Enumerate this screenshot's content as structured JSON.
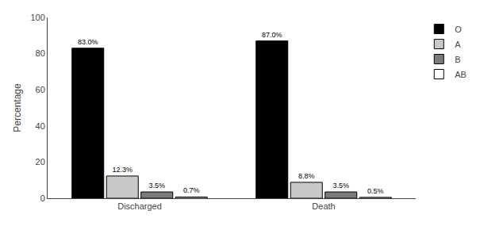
{
  "chart_data": {
    "type": "bar",
    "categories": [
      "Discharged",
      "Death"
    ],
    "series": [
      {
        "name": "O",
        "color": "#000000",
        "values": [
          83.0,
          87.0
        ],
        "value_labels": [
          "83.0%",
          "87.0%"
        ]
      },
      {
        "name": "A",
        "color": "#c8c8c8",
        "values": [
          12.3,
          8.8
        ],
        "value_labels": [
          "12.3%",
          "8.8%"
        ]
      },
      {
        "name": "B",
        "color": "#7a7a7a",
        "values": [
          3.5,
          3.5
        ],
        "value_labels": [
          "3.5%",
          "3.5%"
        ]
      },
      {
        "name": "AB",
        "color": "#ffffff",
        "values": [
          0.7,
          0.5
        ],
        "value_labels": [
          "0.7%",
          "0.5%"
        ]
      }
    ],
    "y_label": "Percentage",
    "ylim": [
      0,
      100
    ],
    "yticks": [
      0,
      20,
      40,
      60,
      80,
      100
    ],
    "grid": false,
    "legend": "upper right",
    "data_labels": true
  }
}
